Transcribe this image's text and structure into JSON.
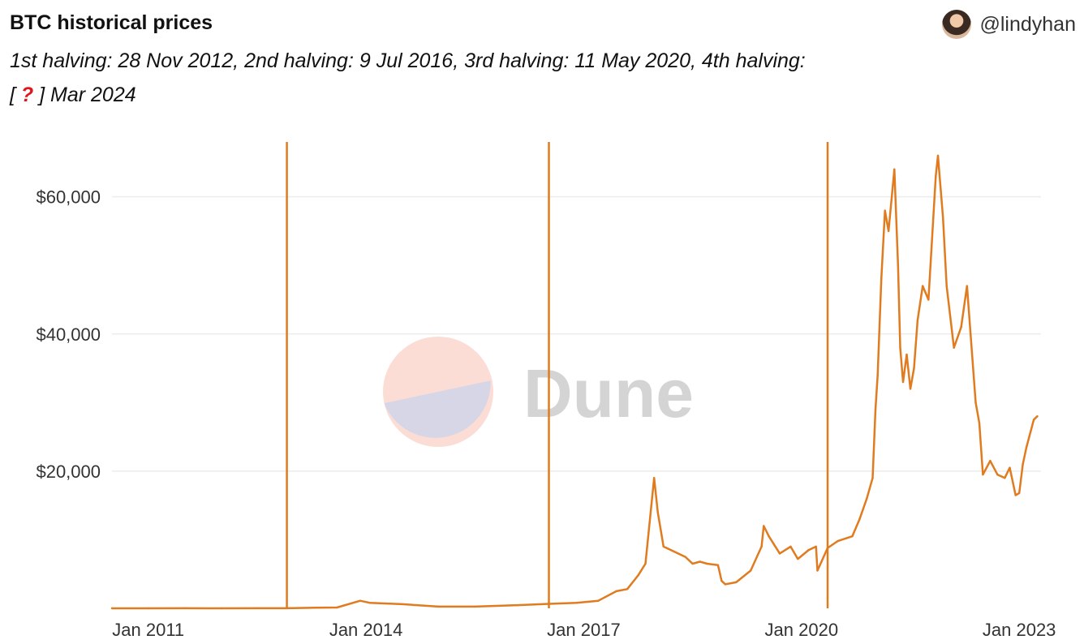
{
  "header": {
    "title": "BTC historical prices",
    "subtitle_main": "1st halving: 28 Nov 2012, 2nd halving: 9 Jul 2016, 3rd halving: 11 May 2020, 4th halving:",
    "subtitle_open": "[ ",
    "subtitle_mark": "?",
    "subtitle_rest": " ] Mar 2024",
    "author": "@lindyhan"
  },
  "watermark": {
    "text": "Dune"
  },
  "colors": {
    "line": "#e07b20",
    "grid": "#ececec",
    "halving": "#e07b20"
  },
  "chart_data": {
    "type": "line",
    "x_range": [
      2010.5,
      2023.3
    ],
    "ylim": [
      0,
      68000
    ],
    "x_ticks": [
      {
        "value": 2011,
        "label": "Jan 2011"
      },
      {
        "value": 2014,
        "label": "Jan 2014"
      },
      {
        "value": 2017,
        "label": "Jan 2017"
      },
      {
        "value": 2020,
        "label": "Jan 2020"
      },
      {
        "value": 2023,
        "label": "Jan 2023"
      }
    ],
    "y_ticks": [
      {
        "value": 20000,
        "label": "$20,000"
      },
      {
        "value": 40000,
        "label": "$40,000"
      },
      {
        "value": 60000,
        "label": "$60,000"
      }
    ],
    "grid": true,
    "halvings": [
      2012.91,
      2016.52,
      2020.36
    ],
    "series": [
      {
        "x": [
          2010.5,
          2011.0,
          2011.5,
          2012.0,
          2012.5,
          2012.91,
          2013.3,
          2013.6,
          2013.92,
          2014.05,
          2014.5,
          2015.0,
          2015.5,
          2016.0,
          2016.52,
          2016.9,
          2017.2,
          2017.45,
          2017.6,
          2017.75,
          2017.85,
          2017.97,
          2018.02,
          2018.1,
          2018.2,
          2018.3,
          2018.4,
          2018.5,
          2018.6,
          2018.7,
          2018.85,
          2018.9,
          2018.95,
          2019.1,
          2019.3,
          2019.45,
          2019.48,
          2019.55,
          2019.7,
          2019.85,
          2019.95,
          2020.1,
          2020.2,
          2020.22,
          2020.36,
          2020.5,
          2020.7,
          2020.8,
          2020.9,
          2020.98,
          2021.02,
          2021.05,
          2021.1,
          2021.15,
          2021.2,
          2021.28,
          2021.33,
          2021.36,
          2021.4,
          2021.45,
          2021.5,
          2021.55,
          2021.6,
          2021.67,
          2021.75,
          2021.85,
          2021.88,
          2021.95,
          2022.0,
          2022.1,
          2022.2,
          2022.28,
          2022.33,
          2022.4,
          2022.45,
          2022.5,
          2022.6,
          2022.7,
          2022.8,
          2022.87,
          2022.95,
          2023.0,
          2023.05,
          2023.1,
          2023.2,
          2023.25
        ],
        "y": [
          0,
          0,
          10,
          5,
          8,
          12,
          100,
          120,
          1100,
          800,
          600,
          250,
          250,
          430,
          650,
          800,
          1100,
          2500,
          2800,
          4800,
          6500,
          19000,
          14000,
          9000,
          8500,
          8000,
          7500,
          6500,
          6800,
          6500,
          6300,
          4000,
          3500,
          3800,
          5500,
          9000,
          12000,
          10500,
          8000,
          9000,
          7200,
          8500,
          9000,
          5500,
          8800,
          9800,
          10500,
          13000,
          16000,
          19000,
          29000,
          34000,
          48000,
          58000,
          55000,
          64000,
          50000,
          38000,
          33000,
          37000,
          32000,
          35000,
          42000,
          47000,
          45000,
          63000,
          66000,
          57000,
          47000,
          38000,
          41000,
          47000,
          40000,
          30000,
          27000,
          19500,
          21500,
          19500,
          19000,
          20500,
          16500,
          16800,
          21000,
          23500,
          27500,
          28000
        ]
      }
    ]
  }
}
